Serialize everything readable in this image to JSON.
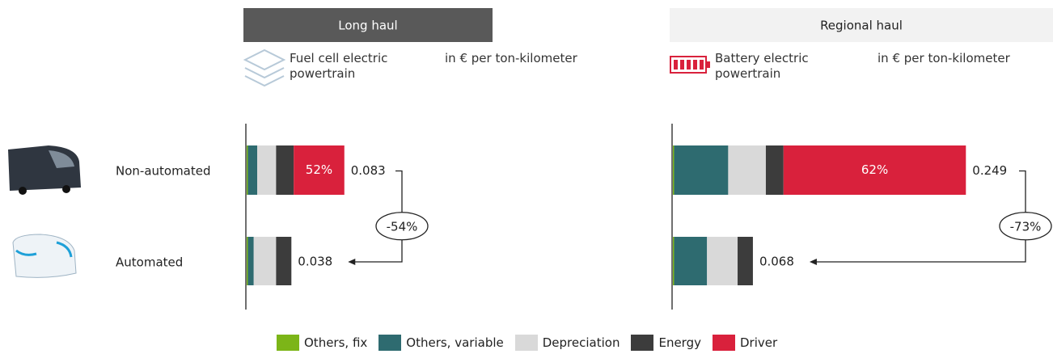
{
  "chart_data": {
    "type": "bar",
    "orientation": "horizontal",
    "stacked": true,
    "categories": [
      "Non-automated",
      "Automated"
    ],
    "series": [
      {
        "name": "Others, fix",
        "color": "#7cb518"
      },
      {
        "name": "Others, variable",
        "color": "#2e6b70"
      },
      {
        "name": "Depreciation",
        "color": "#d9d9d9"
      },
      {
        "name": "Energy",
        "color": "#3c3c3c"
      },
      {
        "name": "Driver",
        "color": "#d9213c"
      }
    ],
    "panels": [
      {
        "title": "Long haul",
        "subtitle": "Fuel cell electric powertrain",
        "unit": "in € per ton-kilometer",
        "series_values": [
          [
            0.001,
            0.001
          ],
          [
            0.008,
            0.005
          ],
          [
            0.016,
            0.019
          ],
          [
            0.015,
            0.013
          ],
          [
            0.043,
            0
          ]
        ],
        "totals": [
          0.083,
          0.038
        ],
        "share_label": "52%",
        "change_label": "-54%"
      },
      {
        "title": "Regional haul",
        "subtitle": "Battery electric powertrain",
        "unit": "in € per ton-kilometer",
        "series_values": [
          [
            0.001,
            0.001
          ],
          [
            0.046,
            0.028
          ],
          [
            0.032,
            0.026
          ],
          [
            0.015,
            0.013
          ],
          [
            0.155,
            0
          ]
        ],
        "totals": [
          0.249,
          0.068
        ],
        "share_label": "62%",
        "change_label": "-73%"
      }
    ]
  }
}
